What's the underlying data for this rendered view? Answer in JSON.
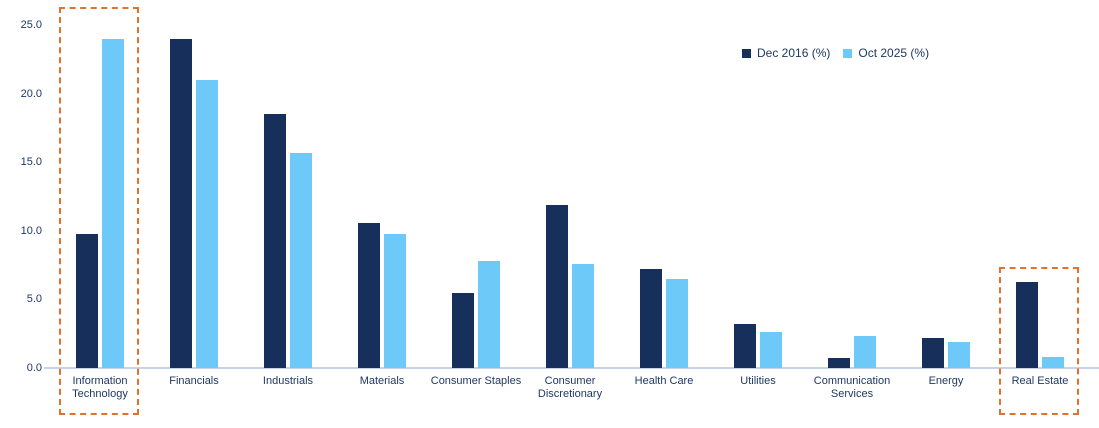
{
  "colors": {
    "series_dec_2016": "#16305B",
    "series_oct_2025": "#6DC9F8",
    "highlight_border": "#E2712E",
    "axis_line": "#C7D3EA",
    "label_text": "#1F3864"
  },
  "chart_data": {
    "type": "bar",
    "title": "",
    "xlabel": "",
    "ylabel": "",
    "categories": [
      "Information Technology",
      "Financials",
      "Industrials",
      "Materials",
      "Consumer Staples",
      "Consumer Discretionary",
      "Health Care",
      "Utilities",
      "Communication Services",
      "Energy",
      "Real Estate"
    ],
    "series": [
      {
        "name": "Dec 2016 (%)",
        "color": "#16305B",
        "values": [
          9.8,
          24.0,
          18.5,
          10.6,
          5.5,
          11.9,
          7.2,
          3.2,
          0.7,
          2.2,
          6.3
        ]
      },
      {
        "name": "Oct 2025 (%)",
        "color": "#6DC9F8",
        "values": [
          24.0,
          21.0,
          15.7,
          9.8,
          7.8,
          7.6,
          6.5,
          2.6,
          2.3,
          1.9,
          0.8
        ]
      }
    ],
    "ylim": [
      0,
      25
    ],
    "y_tick_step": 5,
    "y_tick_labels": [
      "0.0",
      "5.0",
      "10.0",
      "15.0",
      "20.0",
      "25.0"
    ],
    "grid": false,
    "legend_position": "top-right",
    "highlighted_categories": [
      "Information Technology",
      "Real Estate"
    ],
    "highlight_style": "dashed-orange-rectangle",
    "highlight_color": "#E2712E"
  }
}
